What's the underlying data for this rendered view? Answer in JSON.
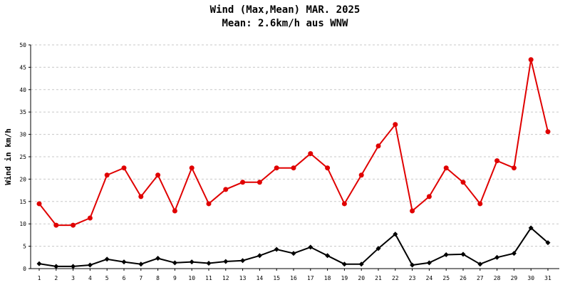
{
  "chart_data": {
    "type": "line",
    "title": "Wind (Max,Mean) MAR. 2025",
    "subtitle": "Mean: 2.6km/h aus WNW",
    "ylabel": "Wind in km/h",
    "xlabel": "",
    "ylim": [
      0,
      50
    ],
    "yticks": [
      0,
      5,
      10,
      15,
      20,
      25,
      30,
      35,
      40,
      45,
      50
    ],
    "grid": true,
    "categories": [
      "1",
      "2",
      "3",
      "4",
      "5",
      "6",
      "7",
      "8",
      "9",
      "10",
      "11",
      "12",
      "13",
      "14",
      "15",
      "16",
      "17",
      "18",
      "19",
      "20",
      "21",
      "22",
      "23",
      "24",
      "25",
      "26",
      "27",
      "28",
      "29",
      "30",
      "31"
    ],
    "series": [
      {
        "color": "#e00000",
        "marker": "circle",
        "values": [
          14.5,
          9.7,
          9.7,
          11.3,
          20.9,
          22.5,
          16.1,
          20.9,
          12.9,
          22.5,
          14.5,
          17.7,
          19.3,
          19.3,
          22.5,
          22.5,
          25.7,
          22.5,
          14.5,
          20.9,
          27.4,
          32.2,
          12.9,
          16.1,
          22.5,
          19.3,
          14.5,
          24.1,
          22.5,
          46.7,
          30.6
        ]
      },
      {
        "color": "#000000",
        "marker": "diamond",
        "values": [
          1.1,
          0.5,
          0.5,
          0.8,
          2.1,
          1.5,
          1.0,
          2.3,
          1.3,
          1.5,
          1.2,
          1.6,
          1.8,
          2.9,
          4.3,
          3.4,
          4.8,
          2.9,
          1.0,
          1.0,
          4.5,
          7.7,
          0.8,
          1.3,
          3.1,
          3.2,
          1.0,
          2.5,
          3.4,
          9.1,
          5.8
        ]
      }
    ]
  }
}
